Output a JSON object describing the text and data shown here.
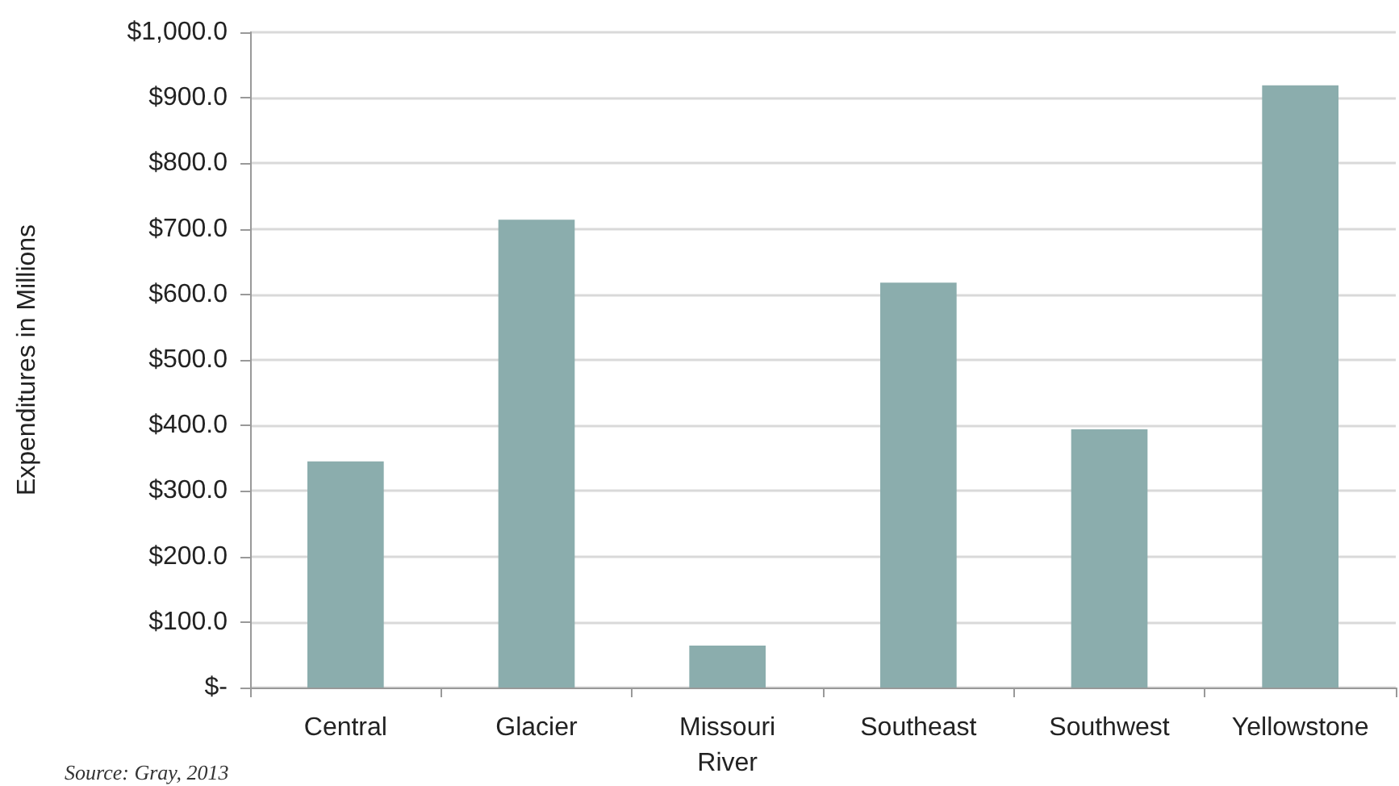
{
  "chart_data": {
    "type": "bar",
    "ylabel": "Expenditures in Millions",
    "categories": [
      "Central",
      "Glacier",
      "Missouri\nRiver",
      "Southeast",
      "Southwest",
      "Yellowstone"
    ],
    "values": [
      345,
      714,
      64,
      618,
      394,
      919
    ],
    "color": "#8badad",
    "ylim": [
      0,
      1000
    ],
    "yticks": [
      {
        "value": 0,
        "label": "$-"
      },
      {
        "value": 100,
        "label": "$100.0"
      },
      {
        "value": 200,
        "label": "$200.0"
      },
      {
        "value": 300,
        "label": "$300.0"
      },
      {
        "value": 400,
        "label": "$400.0"
      },
      {
        "value": 500,
        "label": "$500.0"
      },
      {
        "value": 600,
        "label": "$600.0"
      },
      {
        "value": 700,
        "label": "$700.0"
      },
      {
        "value": 800,
        "label": "$800.0"
      },
      {
        "value": 900,
        "label": "$900.0"
      },
      {
        "value": 1000,
        "label": "$1,000.0"
      }
    ],
    "grid": "y",
    "annotations": [
      "Source: Gray, 2013"
    ]
  }
}
